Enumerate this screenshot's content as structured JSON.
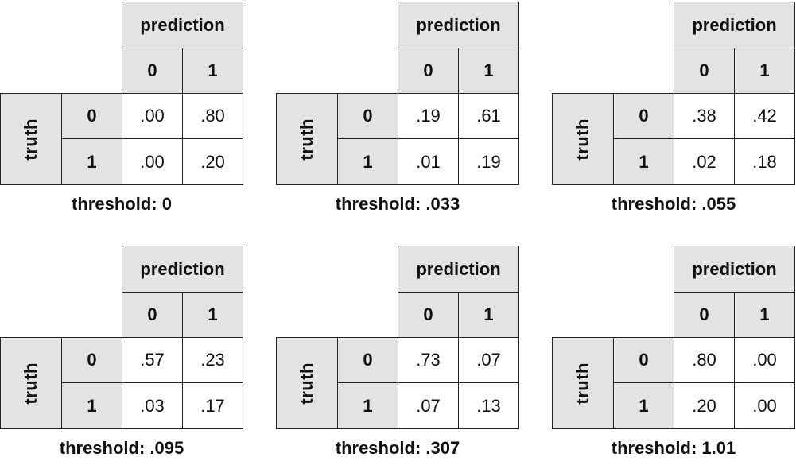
{
  "labels": {
    "prediction": "prediction",
    "truth": "truth",
    "col_0": "0",
    "col_1": "1",
    "row_0": "0",
    "row_1": "1",
    "threshold_prefix": "threshold: "
  },
  "panels": [
    {
      "threshold": "0",
      "tn": ".00",
      "fp": ".80",
      "fn": ".00",
      "tp": ".20"
    },
    {
      "threshold": ".033",
      "tn": ".19",
      "fp": ".61",
      "fn": ".01",
      "tp": ".19"
    },
    {
      "threshold": ".055",
      "tn": ".38",
      "fp": ".42",
      "fn": ".02",
      "tp": ".18"
    },
    {
      "threshold": ".095",
      "tn": ".57",
      "fp": ".23",
      "fn": ".03",
      "tp": ".17"
    },
    {
      "threshold": ".307",
      "tn": ".73",
      "fp": ".07",
      "fn": ".07",
      "tp": ".13"
    },
    {
      "threshold": "1.01",
      "tn": ".80",
      "fp": ".00",
      "fn": ".20",
      "tp": ".00"
    }
  ]
}
